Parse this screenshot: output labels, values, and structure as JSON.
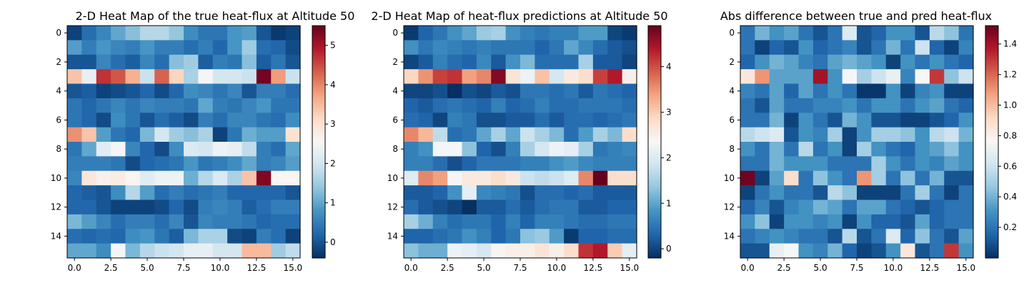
{
  "chart_data": [
    {
      "type": "heatmap",
      "title": "2-D Heat Map of the true heat-flux at Altitude 50",
      "colormap": "RdBu_r",
      "rows": 16,
      "cols": 16,
      "xticks": [
        "0.0",
        "2.5",
        "5.0",
        "7.5",
        "10.0",
        "12.5",
        "15.0"
      ],
      "yticks": [
        "0",
        "2",
        "4",
        "6",
        "8",
        "10",
        "12",
        "14"
      ],
      "colorbar": {
        "min": -0.4,
        "max": 5.5,
        "ticks": [
          "0",
          "1",
          "2",
          "3",
          "4",
          "5"
        ]
      },
      "values": [
        [
          -0.2,
          0.3,
          0.6,
          1.0,
          1.3,
          1.7,
          1.7,
          1.4,
          0.7,
          0.4,
          0.4,
          0.8,
          0.9,
          0.0,
          -0.3,
          -0.2
        ],
        [
          0.9,
          0.5,
          0.8,
          0.6,
          0.5,
          0.8,
          0.5,
          0.5,
          0.3,
          0.5,
          0.2,
          0.8,
          1.5,
          0.3,
          0.2,
          -0.1
        ],
        [
          0.0,
          0.0,
          0.6,
          0.3,
          0.1,
          0.6,
          0.3,
          1.3,
          1.5,
          0.1,
          0.5,
          0.4,
          1.3,
          0.1,
          0.4,
          0.0
        ],
        [
          3.4,
          2.3,
          4.7,
          4.4,
          3.6,
          1.9,
          4.3,
          3.2,
          1.6,
          2.5,
          2.0,
          2.0,
          1.9,
          5.4,
          3.8,
          1.9
        ],
        [
          0.0,
          0.1,
          -0.2,
          -0.1,
          0.0,
          0.2,
          -0.1,
          0.2,
          0.7,
          0.6,
          0.4,
          0.6,
          0.0,
          0.5,
          0.5,
          0.3
        ],
        [
          0.4,
          0.2,
          0.4,
          0.6,
          0.4,
          0.6,
          0.5,
          0.5,
          0.4,
          1.0,
          0.5,
          0.4,
          0.6,
          0.8,
          0.4,
          0.4
        ],
        [
          0.4,
          0.2,
          -0.1,
          0.7,
          0.4,
          0.0,
          0.3,
          0.1,
          -0.1,
          0.5,
          0.3,
          0.6,
          0.6,
          0.4,
          0.3,
          0.7
        ],
        [
          3.9,
          3.4,
          0.9,
          0.4,
          0.2,
          1.2,
          2.0,
          1.5,
          1.3,
          1.6,
          -0.2,
          0.4,
          1.1,
          0.9,
          0.9,
          3.0
        ],
        [
          0.4,
          1.0,
          2.2,
          2.5,
          0.6,
          0.2,
          -0.1,
          0.7,
          2.1,
          2.0,
          2.4,
          2.3,
          1.8,
          0.5,
          0.3,
          1.0
        ],
        [
          0.5,
          0.5,
          0.5,
          0.4,
          -0.1,
          0.2,
          0.3,
          0.4,
          0.8,
          0.4,
          0.5,
          0.7,
          1.0,
          0.5,
          0.6,
          0.9
        ],
        [
          0.6,
          2.9,
          2.7,
          2.8,
          2.6,
          2.2,
          2.4,
          2.4,
          1.1,
          1.7,
          2.1,
          1.6,
          3.4,
          5.3,
          2.6,
          2.6
        ],
        [
          0.2,
          0.1,
          0.0,
          0.7,
          1.7,
          0.9,
          0.3,
          0.5,
          0.3,
          0.4,
          0.5,
          0.2,
          0.2,
          0.2,
          0.2,
          0.0
        ],
        [
          0.2,
          0.2,
          0.0,
          -0.2,
          -0.2,
          -0.2,
          -0.1,
          0.2,
          -0.1,
          0.5,
          0.6,
          0.5,
          0.1,
          0.3,
          0.5,
          0.5
        ],
        [
          1.2,
          0.9,
          0.6,
          0.3,
          0.5,
          0.5,
          0.3,
          0.6,
          0.0,
          0.6,
          0.5,
          0.5,
          0.4,
          0.2,
          0.3,
          0.3
        ],
        [
          0.3,
          0.2,
          0.3,
          0.2,
          0.7,
          0.8,
          0.4,
          0.1,
          1.2,
          1.6,
          1.6,
          -0.1,
          -0.2,
          0.5,
          0.3,
          -0.2
        ],
        [
          1.0,
          1.0,
          0.7,
          2.5,
          1.2,
          1.7,
          1.9,
          2.0,
          2.3,
          2.3,
          2.0,
          2.0,
          3.5,
          3.5,
          1.5,
          1.8
        ]
      ]
    },
    {
      "type": "heatmap",
      "title": "2-D Heat Map of heat-flux predictions at Altitude 50",
      "colormap": "RdBu_r",
      "rows": 16,
      "cols": 16,
      "xticks": [
        "0.0",
        "2.5",
        "5.0",
        "7.5",
        "10.0",
        "12.5",
        "15.0"
      ],
      "yticks": [
        "0",
        "2",
        "4",
        "6",
        "8",
        "10",
        "12",
        "14"
      ],
      "colorbar": {
        "min": -0.2,
        "max": 4.9,
        "ticks": [
          "0",
          "1",
          "2",
          "3",
          "4"
        ]
      },
      "values": [
        [
          -0.1,
          0.3,
          0.5,
          0.8,
          1.0,
          1.4,
          1.5,
          0.8,
          0.6,
          0.5,
          0.6,
          0.6,
          0.9,
          0.9,
          0.0,
          -0.1
        ],
        [
          0.8,
          0.5,
          0.7,
          0.6,
          0.5,
          0.6,
          0.5,
          0.5,
          0.5,
          0.3,
          0.5,
          1.0,
          0.7,
          0.4,
          0.2,
          0.1
        ],
        [
          0.0,
          0.2,
          0.6,
          0.4,
          0.3,
          0.7,
          0.2,
          0.8,
          1.2,
          0.4,
          0.4,
          0.4,
          1.5,
          0.2,
          0.2,
          0.0
        ],
        [
          2.9,
          3.5,
          4.1,
          4.2,
          3.4,
          3.6,
          4.7,
          2.7,
          2.2,
          3.1,
          1.9,
          2.6,
          2.8,
          4.1,
          4.4,
          2.5
        ],
        [
          0.0,
          0.0,
          0.1,
          -0.2,
          0.1,
          0.0,
          0.2,
          0.1,
          0.5,
          0.5,
          0.4,
          0.5,
          0.2,
          0.5,
          0.4,
          0.3
        ],
        [
          0.3,
          0.2,
          0.4,
          0.5,
          0.4,
          0.3,
          0.6,
          0.3,
          0.4,
          0.6,
          0.4,
          0.4,
          0.5,
          0.5,
          0.5,
          0.4
        ],
        [
          0.4,
          0.3,
          0.0,
          0.6,
          0.5,
          0.1,
          0.1,
          0.2,
          0.2,
          0.4,
          0.2,
          0.4,
          0.4,
          0.3,
          0.4,
          0.5
        ],
        [
          3.6,
          3.2,
          1.7,
          0.4,
          0.5,
          1.0,
          1.5,
          1.0,
          1.8,
          1.5,
          1.2,
          0.4,
          0.9,
          1.5,
          1.2,
          2.8
        ],
        [
          0.6,
          0.8,
          2.3,
          2.3,
          1.3,
          0.3,
          0.1,
          0.6,
          1.5,
          1.9,
          2.2,
          2.1,
          1.5,
          0.5,
          0.6,
          0.7
        ],
        [
          0.6,
          0.6,
          0.4,
          0.1,
          0.3,
          0.5,
          0.5,
          0.5,
          0.6,
          0.6,
          0.8,
          0.9,
          0.7,
          0.6,
          0.6,
          0.6
        ],
        [
          2.0,
          3.6,
          3.4,
          2.3,
          2.6,
          2.6,
          2.8,
          2.6,
          1.8,
          1.7,
          1.8,
          2.0,
          3.6,
          4.9,
          2.8,
          2.8
        ],
        [
          0.2,
          0.2,
          0.3,
          0.8,
          2.1,
          0.7,
          0.6,
          0.5,
          0.1,
          0.4,
          0.4,
          0.3,
          0.4,
          0.2,
          0.2,
          0.2
        ],
        [
          0.4,
          0.2,
          0.1,
          0.0,
          -0.2,
          0.2,
          0.2,
          0.4,
          0.2,
          0.4,
          0.5,
          0.5,
          0.2,
          0.2,
          0.3,
          0.3
        ],
        [
          1.5,
          1.1,
          0.6,
          0.4,
          0.5,
          0.5,
          0.3,
          0.6,
          0.3,
          0.6,
          0.6,
          0.5,
          0.4,
          0.4,
          0.5,
          0.5
        ],
        [
          0.3,
          0.3,
          0.4,
          0.5,
          0.8,
          0.6,
          0.3,
          0.5,
          1.3,
          1.4,
          0.9,
          -0.1,
          0.3,
          0.3,
          0.4,
          0.4
        ],
        [
          1.3,
          1.1,
          1.1,
          2.2,
          2.1,
          1.9,
          2.4,
          2.5,
          2.5,
          2.7,
          2.5,
          2.8,
          4.2,
          4.4,
          3.0,
          2.1
        ]
      ]
    },
    {
      "type": "heatmap",
      "title": "Abs difference between true and pred heat-flux",
      "colormap": "RdBu_r",
      "rows": 16,
      "cols": 16,
      "xticks": [
        "0.0",
        "2.5",
        "5.0",
        "7.5",
        "10.0",
        "12.5",
        "15.0"
      ],
      "yticks": [
        "0",
        "2",
        "4",
        "6",
        "8",
        "10",
        "12",
        "14"
      ],
      "colorbar": {
        "min": 0.0,
        "max": 1.52,
        "ticks": [
          "0.2",
          "0.4",
          "0.6",
          "0.8",
          "1.0",
          "1.2",
          "1.4"
        ]
      },
      "values": [
        [
          0.2,
          0.4,
          0.3,
          0.35,
          0.2,
          0.1,
          0.2,
          0.65,
          0.1,
          0.15,
          0.3,
          0.3,
          0.1,
          0.55,
          0.45,
          0.2
        ],
        [
          0.2,
          0.05,
          0.15,
          0.1,
          0.3,
          0.15,
          0.2,
          0.25,
          0.1,
          0.2,
          0.4,
          0.2,
          0.6,
          0.15,
          0.05,
          0.25
        ],
        [
          0.15,
          0.3,
          0.4,
          0.35,
          0.25,
          0.2,
          0.35,
          0.4,
          0.35,
          0.3,
          0.05,
          0.3,
          0.2,
          0.3,
          0.2,
          0.15
        ],
        [
          0.85,
          1.1,
          0.35,
          0.35,
          0.35,
          1.4,
          0.3,
          0.75,
          0.5,
          0.6,
          0.7,
          0.25,
          0.75,
          1.3,
          0.45,
          0.6
        ],
        [
          0.25,
          0.2,
          0.35,
          0.15,
          0.35,
          0.2,
          0.3,
          0.2,
          0.02,
          0.02,
          0.3,
          0.05,
          0.25,
          0.3,
          0.05,
          0.05
        ],
        [
          0.2,
          0.1,
          0.35,
          0.2,
          0.2,
          0.25,
          0.25,
          0.3,
          0.2,
          0.3,
          0.3,
          0.2,
          0.3,
          0.35,
          0.2,
          0.15
        ],
        [
          0.2,
          0.2,
          0.4,
          0.05,
          0.3,
          0.2,
          0.1,
          0.4,
          0.3,
          0.1,
          0.1,
          0.05,
          0.05,
          0.1,
          0.15,
          0.3
        ],
        [
          0.55,
          0.6,
          0.65,
          0.1,
          0.3,
          0.25,
          0.5,
          0.05,
          0.3,
          0.5,
          0.5,
          0.45,
          0.3,
          0.55,
          0.6,
          0.4
        ],
        [
          0.3,
          0.2,
          0.4,
          0.2,
          0.55,
          0.2,
          0.3,
          0.05,
          0.5,
          0.3,
          0.2,
          0.15,
          0.3,
          0.35,
          0.45,
          0.3
        ],
        [
          0.2,
          0.2,
          0.4,
          0.3,
          0.3,
          0.3,
          0.2,
          0.2,
          0.2,
          0.5,
          0.3,
          0.2,
          0.3,
          0.25,
          0.35,
          0.3
        ],
        [
          1.5,
          0.05,
          0.35,
          0.9,
          0.2,
          0.45,
          0.3,
          0.2,
          1.1,
          0.5,
          0.2,
          0.45,
          0.2,
          0.4,
          0.1,
          0.1
        ],
        [
          0.05,
          0.2,
          0.3,
          0.2,
          0.2,
          0.1,
          0.55,
          0.45,
          0.05,
          0.05,
          0.05,
          0.2,
          0.5,
          0.2,
          0.05,
          0.2
        ],
        [
          0.15,
          0.25,
          0.1,
          0.25,
          0.3,
          0.4,
          0.35,
          0.2,
          0.35,
          0.35,
          0.2,
          0.15,
          0.1,
          0.15,
          0.2,
          0.2
        ],
        [
          0.3,
          0.45,
          0.05,
          0.3,
          0.3,
          0.25,
          0.3,
          0.05,
          0.3,
          0.15,
          0.15,
          0.1,
          0.35,
          0.15,
          0.2,
          0.2
        ],
        [
          0.2,
          0.25,
          0.3,
          0.25,
          0.2,
          0.2,
          0.1,
          0.55,
          0.1,
          0.2,
          0.65,
          0.15,
          0.45,
          0.2,
          0.1,
          0.35
        ],
        [
          0.1,
          0.1,
          0.7,
          0.75,
          0.3,
          0.25,
          0.4,
          0.15,
          0.05,
          0.1,
          0.3,
          0.85,
          0.1,
          0.2,
          1.3,
          0.3
        ]
      ]
    }
  ]
}
